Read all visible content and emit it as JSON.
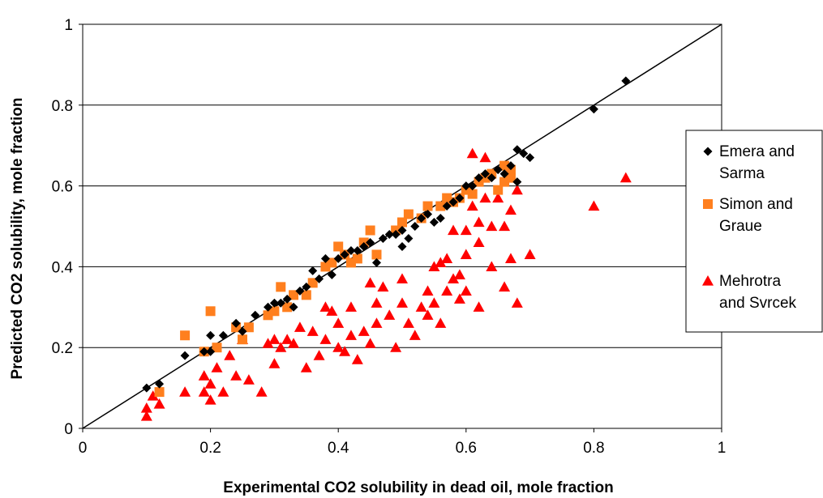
{
  "chart_data": {
    "type": "scatter",
    "xlabel": "Experimental CO2 solubility in dead oil, mole fraction",
    "ylabel": "Predicted CO2 solubility, mole fraction",
    "xlim": [
      0,
      1
    ],
    "ylim": [
      0,
      1
    ],
    "x_ticks": [
      "0",
      "0.2",
      "0.4",
      "0.6",
      "0.8",
      "1"
    ],
    "y_ticks": [
      "0",
      "0.2",
      "0.4",
      "0.6",
      "0.8",
      "1"
    ],
    "grid": "horizontal",
    "legend_position": "right",
    "reference_line": {
      "x": [
        0,
        1
      ],
      "y": [
        0,
        1
      ]
    },
    "series": [
      {
        "name_lines": [
          "Emera and",
          "Sarma"
        ],
        "marker": "diamond",
        "color": "#000000",
        "points": [
          [
            0.1,
            0.1
          ],
          [
            0.12,
            0.11
          ],
          [
            0.16,
            0.18
          ],
          [
            0.19,
            0.19
          ],
          [
            0.2,
            0.23
          ],
          [
            0.2,
            0.19
          ],
          [
            0.22,
            0.23
          ],
          [
            0.24,
            0.26
          ],
          [
            0.25,
            0.24
          ],
          [
            0.27,
            0.28
          ],
          [
            0.29,
            0.3
          ],
          [
            0.3,
            0.31
          ],
          [
            0.31,
            0.31
          ],
          [
            0.32,
            0.32
          ],
          [
            0.33,
            0.3
          ],
          [
            0.34,
            0.34
          ],
          [
            0.35,
            0.35
          ],
          [
            0.36,
            0.39
          ],
          [
            0.37,
            0.37
          ],
          [
            0.38,
            0.42
          ],
          [
            0.39,
            0.38
          ],
          [
            0.4,
            0.42
          ],
          [
            0.41,
            0.43
          ],
          [
            0.42,
            0.44
          ],
          [
            0.43,
            0.44
          ],
          [
            0.44,
            0.45
          ],
          [
            0.45,
            0.46
          ],
          [
            0.46,
            0.41
          ],
          [
            0.47,
            0.47
          ],
          [
            0.48,
            0.48
          ],
          [
            0.49,
            0.48
          ],
          [
            0.5,
            0.49
          ],
          [
            0.5,
            0.45
          ],
          [
            0.51,
            0.47
          ],
          [
            0.52,
            0.5
          ],
          [
            0.53,
            0.52
          ],
          [
            0.54,
            0.53
          ],
          [
            0.55,
            0.51
          ],
          [
            0.56,
            0.52
          ],
          [
            0.57,
            0.55
          ],
          [
            0.58,
            0.56
          ],
          [
            0.59,
            0.57
          ],
          [
            0.6,
            0.6
          ],
          [
            0.61,
            0.6
          ],
          [
            0.62,
            0.62
          ],
          [
            0.63,
            0.63
          ],
          [
            0.64,
            0.62
          ],
          [
            0.65,
            0.64
          ],
          [
            0.66,
            0.63
          ],
          [
            0.67,
            0.65
          ],
          [
            0.68,
            0.69
          ],
          [
            0.68,
            0.61
          ],
          [
            0.69,
            0.68
          ],
          [
            0.7,
            0.67
          ],
          [
            0.8,
            0.79
          ],
          [
            0.85,
            0.86
          ]
        ]
      },
      {
        "name_lines": [
          "Simon and",
          "Graue"
        ],
        "marker": "square",
        "color": "#FF7F1E",
        "points": [
          [
            0.12,
            0.09
          ],
          [
            0.16,
            0.23
          ],
          [
            0.19,
            0.19
          ],
          [
            0.2,
            0.29
          ],
          [
            0.21,
            0.2
          ],
          [
            0.24,
            0.25
          ],
          [
            0.25,
            0.22
          ],
          [
            0.26,
            0.25
          ],
          [
            0.29,
            0.28
          ],
          [
            0.3,
            0.29
          ],
          [
            0.31,
            0.35
          ],
          [
            0.32,
            0.3
          ],
          [
            0.33,
            0.33
          ],
          [
            0.35,
            0.33
          ],
          [
            0.36,
            0.36
          ],
          [
            0.38,
            0.4
          ],
          [
            0.39,
            0.41
          ],
          [
            0.4,
            0.45
          ],
          [
            0.41,
            0.43
          ],
          [
            0.42,
            0.41
          ],
          [
            0.43,
            0.42
          ],
          [
            0.44,
            0.46
          ],
          [
            0.45,
            0.49
          ],
          [
            0.46,
            0.43
          ],
          [
            0.49,
            0.49
          ],
          [
            0.5,
            0.51
          ],
          [
            0.51,
            0.53
          ],
          [
            0.53,
            0.52
          ],
          [
            0.54,
            0.55
          ],
          [
            0.56,
            0.55
          ],
          [
            0.57,
            0.57
          ],
          [
            0.58,
            0.56
          ],
          [
            0.59,
            0.57
          ],
          [
            0.6,
            0.59
          ],
          [
            0.61,
            0.58
          ],
          [
            0.62,
            0.61
          ],
          [
            0.63,
            0.62
          ],
          [
            0.64,
            0.63
          ],
          [
            0.65,
            0.59
          ],
          [
            0.66,
            0.61
          ],
          [
            0.66,
            0.65
          ],
          [
            0.67,
            0.64
          ],
          [
            0.67,
            0.62
          ]
        ]
      },
      {
        "name_lines": [
          "Mehrotra",
          "and Svrcek"
        ],
        "marker": "triangle",
        "color": "#FF0000",
        "points": [
          [
            0.1,
            0.03
          ],
          [
            0.1,
            0.05
          ],
          [
            0.11,
            0.08
          ],
          [
            0.12,
            0.06
          ],
          [
            0.16,
            0.09
          ],
          [
            0.19,
            0.09
          ],
          [
            0.19,
            0.13
          ],
          [
            0.2,
            0.07
          ],
          [
            0.2,
            0.11
          ],
          [
            0.21,
            0.15
          ],
          [
            0.22,
            0.09
          ],
          [
            0.23,
            0.18
          ],
          [
            0.24,
            0.13
          ],
          [
            0.25,
            0.22
          ],
          [
            0.26,
            0.12
          ],
          [
            0.28,
            0.09
          ],
          [
            0.29,
            0.21
          ],
          [
            0.3,
            0.16
          ],
          [
            0.3,
            0.22
          ],
          [
            0.31,
            0.2
          ],
          [
            0.32,
            0.22
          ],
          [
            0.33,
            0.21
          ],
          [
            0.34,
            0.25
          ],
          [
            0.35,
            0.15
          ],
          [
            0.36,
            0.24
          ],
          [
            0.37,
            0.18
          ],
          [
            0.38,
            0.22
          ],
          [
            0.38,
            0.3
          ],
          [
            0.39,
            0.29
          ],
          [
            0.4,
            0.2
          ],
          [
            0.4,
            0.26
          ],
          [
            0.41,
            0.19
          ],
          [
            0.42,
            0.23
          ],
          [
            0.42,
            0.3
          ],
          [
            0.43,
            0.17
          ],
          [
            0.44,
            0.24
          ],
          [
            0.45,
            0.36
          ],
          [
            0.45,
            0.21
          ],
          [
            0.46,
            0.31
          ],
          [
            0.46,
            0.26
          ],
          [
            0.47,
            0.35
          ],
          [
            0.48,
            0.28
          ],
          [
            0.49,
            0.2
          ],
          [
            0.5,
            0.31
          ],
          [
            0.5,
            0.37
          ],
          [
            0.51,
            0.26
          ],
          [
            0.52,
            0.23
          ],
          [
            0.53,
            0.3
          ],
          [
            0.54,
            0.28
          ],
          [
            0.54,
            0.34
          ],
          [
            0.55,
            0.31
          ],
          [
            0.55,
            0.4
          ],
          [
            0.56,
            0.26
          ],
          [
            0.56,
            0.41
          ],
          [
            0.57,
            0.34
          ],
          [
            0.57,
            0.42
          ],
          [
            0.58,
            0.37
          ],
          [
            0.58,
            0.49
          ],
          [
            0.59,
            0.32
          ],
          [
            0.59,
            0.38
          ],
          [
            0.6,
            0.34
          ],
          [
            0.6,
            0.43
          ],
          [
            0.6,
            0.49
          ],
          [
            0.61,
            0.68
          ],
          [
            0.61,
            0.55
          ],
          [
            0.62,
            0.46
          ],
          [
            0.62,
            0.51
          ],
          [
            0.62,
            0.3
          ],
          [
            0.63,
            0.67
          ],
          [
            0.63,
            0.57
          ],
          [
            0.64,
            0.5
          ],
          [
            0.64,
            0.4
          ],
          [
            0.65,
            0.57
          ],
          [
            0.66,
            0.5
          ],
          [
            0.66,
            0.35
          ],
          [
            0.67,
            0.54
          ],
          [
            0.67,
            0.42
          ],
          [
            0.68,
            0.59
          ],
          [
            0.68,
            0.31
          ],
          [
            0.7,
            0.43
          ],
          [
            0.8,
            0.55
          ],
          [
            0.85,
            0.62
          ]
        ]
      }
    ]
  }
}
